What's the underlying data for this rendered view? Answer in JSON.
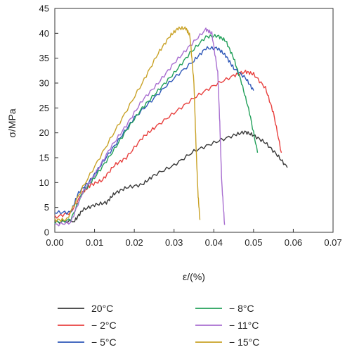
{
  "chart_data": {
    "type": "line",
    "xlabel": "ε/(%)",
    "ylabel": "σ/MPa",
    "xlim": [
      0,
      0.07
    ],
    "ylim": [
      0,
      45
    ],
    "x_ticks": [
      "0.00",
      "0.01",
      "0.02",
      "0.03",
      "0.04",
      "0.05",
      "0.06",
      "0.07"
    ],
    "y_ticks": [
      "0",
      "5",
      "10",
      "15",
      "20",
      "25",
      "30",
      "35",
      "40",
      "45"
    ],
    "grid": false,
    "legend_position": "bottom",
    "series": [
      {
        "name": "20°C",
        "color": "#3a3a3a",
        "points": [
          [
            0.0,
            2.0
          ],
          [
            0.005,
            2.3
          ],
          [
            0.007,
            4.5
          ],
          [
            0.01,
            5.5
          ],
          [
            0.013,
            6.0
          ],
          [
            0.015,
            7.8
          ],
          [
            0.018,
            9.0
          ],
          [
            0.022,
            9.6
          ],
          [
            0.025,
            11.5
          ],
          [
            0.03,
            13.5
          ],
          [
            0.035,
            16.3
          ],
          [
            0.04,
            18.0
          ],
          [
            0.045,
            19.5
          ],
          [
            0.0478,
            20.2
          ],
          [
            0.05,
            19.5
          ],
          [
            0.053,
            18.0
          ],
          [
            0.056,
            15.5
          ],
          [
            0.0585,
            13.0
          ]
        ]
      },
      {
        "name": "− 2°C",
        "color": "#e8413f",
        "points": [
          [
            0.0,
            3.0
          ],
          [
            0.004,
            4.0
          ],
          [
            0.007,
            8.0
          ],
          [
            0.009,
            9.5
          ],
          [
            0.012,
            10.5
          ],
          [
            0.015,
            13.5
          ],
          [
            0.018,
            15.0
          ],
          [
            0.022,
            19.0
          ],
          [
            0.025,
            21.0
          ],
          [
            0.03,
            24.0
          ],
          [
            0.035,
            27.0
          ],
          [
            0.04,
            29.5
          ],
          [
            0.045,
            31.5
          ],
          [
            0.048,
            32.3
          ],
          [
            0.05,
            31.8
          ],
          [
            0.053,
            29.0
          ],
          [
            0.055,
            24.0
          ],
          [
            0.057,
            16.0
          ]
        ]
      },
      {
        "name": "− 5°C",
        "color": "#2e57b8",
        "points": [
          [
            0.0,
            4.0
          ],
          [
            0.004,
            4.0
          ],
          [
            0.006,
            8.0
          ],
          [
            0.009,
            10.5
          ],
          [
            0.012,
            14.0
          ],
          [
            0.016,
            18.5
          ],
          [
            0.02,
            23.0
          ],
          [
            0.025,
            27.0
          ],
          [
            0.03,
            31.0
          ],
          [
            0.035,
            34.5
          ],
          [
            0.038,
            37.0
          ],
          [
            0.041,
            37.0
          ],
          [
            0.043,
            35.5
          ],
          [
            0.045,
            33.0
          ],
          [
            0.048,
            31.0
          ],
          [
            0.05,
            28.5
          ]
        ]
      },
      {
        "name": "− 8°C",
        "color": "#22a05a",
        "points": [
          [
            0.0,
            2.0
          ],
          [
            0.004,
            2.5
          ],
          [
            0.007,
            8.0
          ],
          [
            0.01,
            11.0
          ],
          [
            0.014,
            15.5
          ],
          [
            0.018,
            20.5
          ],
          [
            0.022,
            25.0
          ],
          [
            0.026,
            28.5
          ],
          [
            0.03,
            32.0
          ],
          [
            0.034,
            36.0
          ],
          [
            0.038,
            39.3
          ],
          [
            0.041,
            39.5
          ],
          [
            0.043,
            38.5
          ],
          [
            0.045,
            35.0
          ],
          [
            0.047,
            30.0
          ],
          [
            0.049,
            24.0
          ],
          [
            0.051,
            16.0
          ]
        ]
      },
      {
        "name": "− 11°C",
        "color": "#a86ed0",
        "points": [
          [
            0.0,
            1.5
          ],
          [
            0.004,
            2.0
          ],
          [
            0.007,
            8.0
          ],
          [
            0.01,
            11.5
          ],
          [
            0.014,
            17.0
          ],
          [
            0.018,
            21.5
          ],
          [
            0.022,
            26.5
          ],
          [
            0.026,
            30.0
          ],
          [
            0.03,
            34.0
          ],
          [
            0.034,
            37.5
          ],
          [
            0.038,
            40.8
          ],
          [
            0.0395,
            40.0
          ],
          [
            0.041,
            32.0
          ],
          [
            0.0415,
            22.0
          ],
          [
            0.042,
            10.0
          ],
          [
            0.0427,
            1.5
          ]
        ]
      },
      {
        "name": "− 15°C",
        "color": "#c9a227",
        "points": [
          [
            0.0,
            2.5
          ],
          [
            0.003,
            2.5
          ],
          [
            0.007,
            9.0
          ],
          [
            0.012,
            16.0
          ],
          [
            0.017,
            23.0
          ],
          [
            0.022,
            30.0
          ],
          [
            0.026,
            36.0
          ],
          [
            0.029,
            39.5
          ],
          [
            0.031,
            41.0
          ],
          [
            0.033,
            41.0
          ],
          [
            0.034,
            39.5
          ],
          [
            0.035,
            30.0
          ],
          [
            0.0355,
            18.0
          ],
          [
            0.036,
            8.0
          ],
          [
            0.0365,
            2.5
          ]
        ]
      }
    ]
  }
}
